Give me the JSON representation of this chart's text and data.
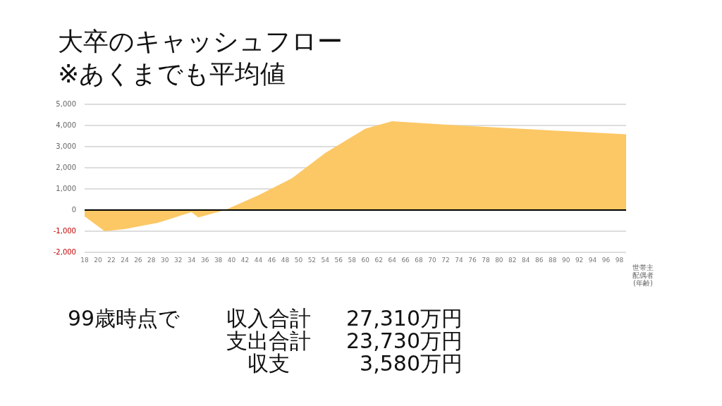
{
  "chart_data": {
    "type": "area",
    "title": "大卒のキャッシュフロー",
    "subtitle": "※あくまでも平均値",
    "xlabel": "世帯主配偶者(年齢)",
    "x": [
      18,
      21,
      24,
      29,
      34,
      35,
      39,
      44,
      49,
      54,
      60,
      64,
      74,
      99
    ],
    "series": [
      {
        "color": "#fcc865",
        "values": [
          -300,
          -1000,
          -900,
          -600,
          -100,
          -350,
          0,
          700,
          1500,
          2700,
          3850,
          4200,
          4000,
          3580
        ]
      }
    ],
    "xlim": [
      18,
      99
    ],
    "xticks": [
      18,
      20,
      22,
      24,
      26,
      28,
      30,
      32,
      34,
      36,
      38,
      40,
      42,
      44,
      46,
      48,
      50,
      52,
      54,
      56,
      58,
      60,
      62,
      64,
      66,
      68,
      70,
      72,
      74,
      76,
      78,
      80,
      82,
      84,
      86,
      88,
      90,
      92,
      94,
      96,
      98
    ],
    "ylim": [
      -2000,
      5000
    ],
    "yticks": [
      {
        "value": -2000,
        "label": "-2,000"
      },
      {
        "value": -1000,
        "label": "-1,000"
      },
      0,
      {
        "value": 1000,
        "label": "1,000"
      },
      {
        "value": 2000,
        "label": "2,000"
      },
      {
        "value": 3000,
        "label": "3,000"
      },
      {
        "value": 4000,
        "label": "4,000"
      },
      {
        "value": 5000,
        "label": "5,000"
      }
    ],
    "grid": "y",
    "legend": false,
    "ref_lines": [
      {
        "axis": "y",
        "value": 0,
        "color": "#000000"
      }
    ],
    "annotations": [
      "99歳時点で",
      "収入合計",
      "27,310万円",
      "支出合計",
      "23,730万円",
      "収支",
      "3,580万円"
    ]
  }
}
